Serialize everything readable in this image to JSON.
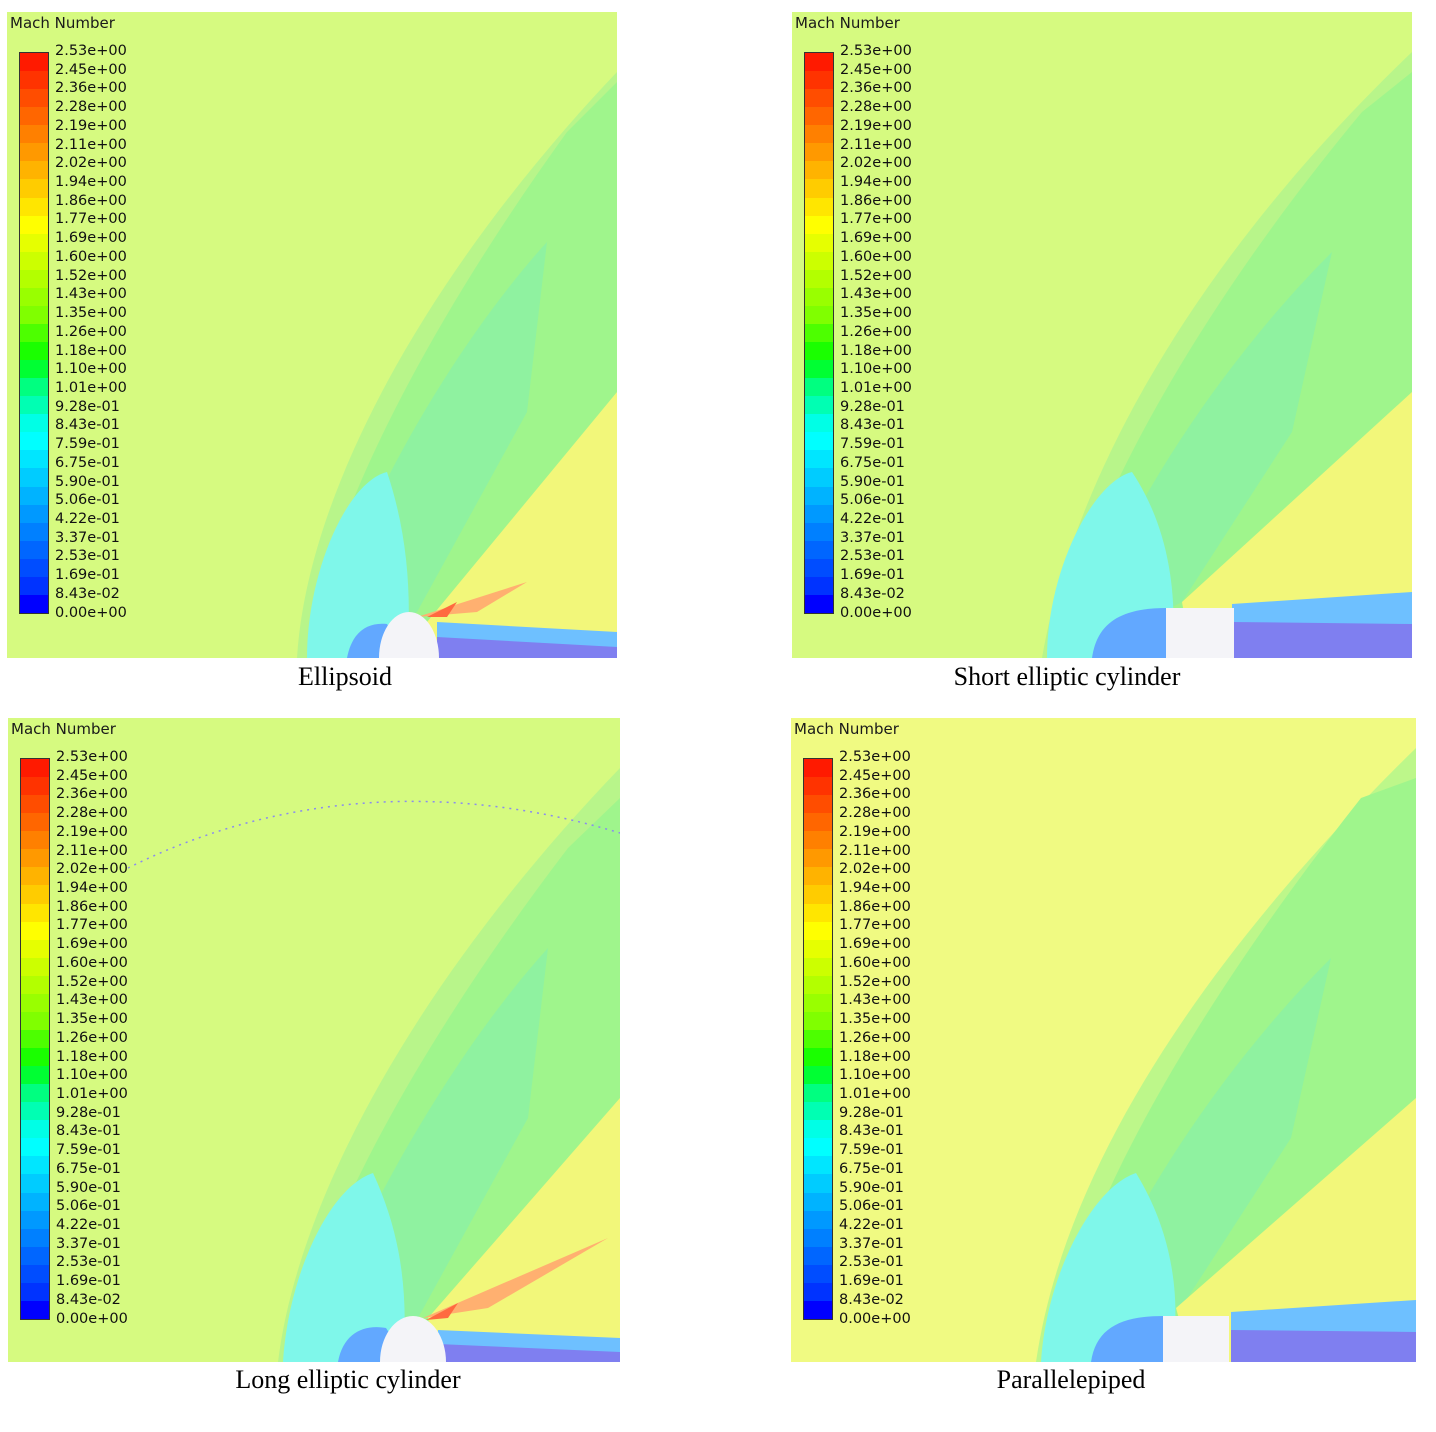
{
  "legend_title": "Mach Number",
  "legend_ticks": [
    "2.53e+00",
    "2.45e+00",
    "2.36e+00",
    "2.28e+00",
    "2.19e+00",
    "2.11e+00",
    "2.02e+00",
    "1.94e+00",
    "1.86e+00",
    "1.77e+00",
    "1.69e+00",
    "1.60e+00",
    "1.52e+00",
    "1.43e+00",
    "1.35e+00",
    "1.26e+00",
    "1.18e+00",
    "1.10e+00",
    "1.01e+00",
    "9.28e-01",
    "8.43e-01",
    "7.59e-01",
    "6.75e-01",
    "5.90e-01",
    "5.06e-01",
    "4.22e-01",
    "3.37e-01",
    "2.53e-01",
    "1.69e-01",
    "8.43e-02",
    "0.00e+00"
  ],
  "legend_colors": [
    "#ff1a00",
    "#ff3300",
    "#ff4d00",
    "#ff6600",
    "#ff8000",
    "#ff9900",
    "#ffb300",
    "#ffcc00",
    "#ffe600",
    "#ffff00",
    "#e6ff00",
    "#ccff00",
    "#b3ff00",
    "#99ff00",
    "#80ff00",
    "#4dff00",
    "#1aff00",
    "#00ff33",
    "#00ff80",
    "#00ffb3",
    "#00ffe6",
    "#00ffff",
    "#00e6ff",
    "#00ccff",
    "#00b3ff",
    "#0099ff",
    "#0080ff",
    "#0066ff",
    "#004dff",
    "#0033ff",
    "#0000ff"
  ],
  "panels": [
    {
      "caption": "Ellipsoid",
      "body": "ellipse"
    },
    {
      "caption": "Short elliptic cylinder",
      "body": "rect"
    },
    {
      "caption": "Long elliptic cylinder",
      "body": "ellipse"
    },
    {
      "caption": "Parallelepiped",
      "body": "rect"
    }
  ]
}
